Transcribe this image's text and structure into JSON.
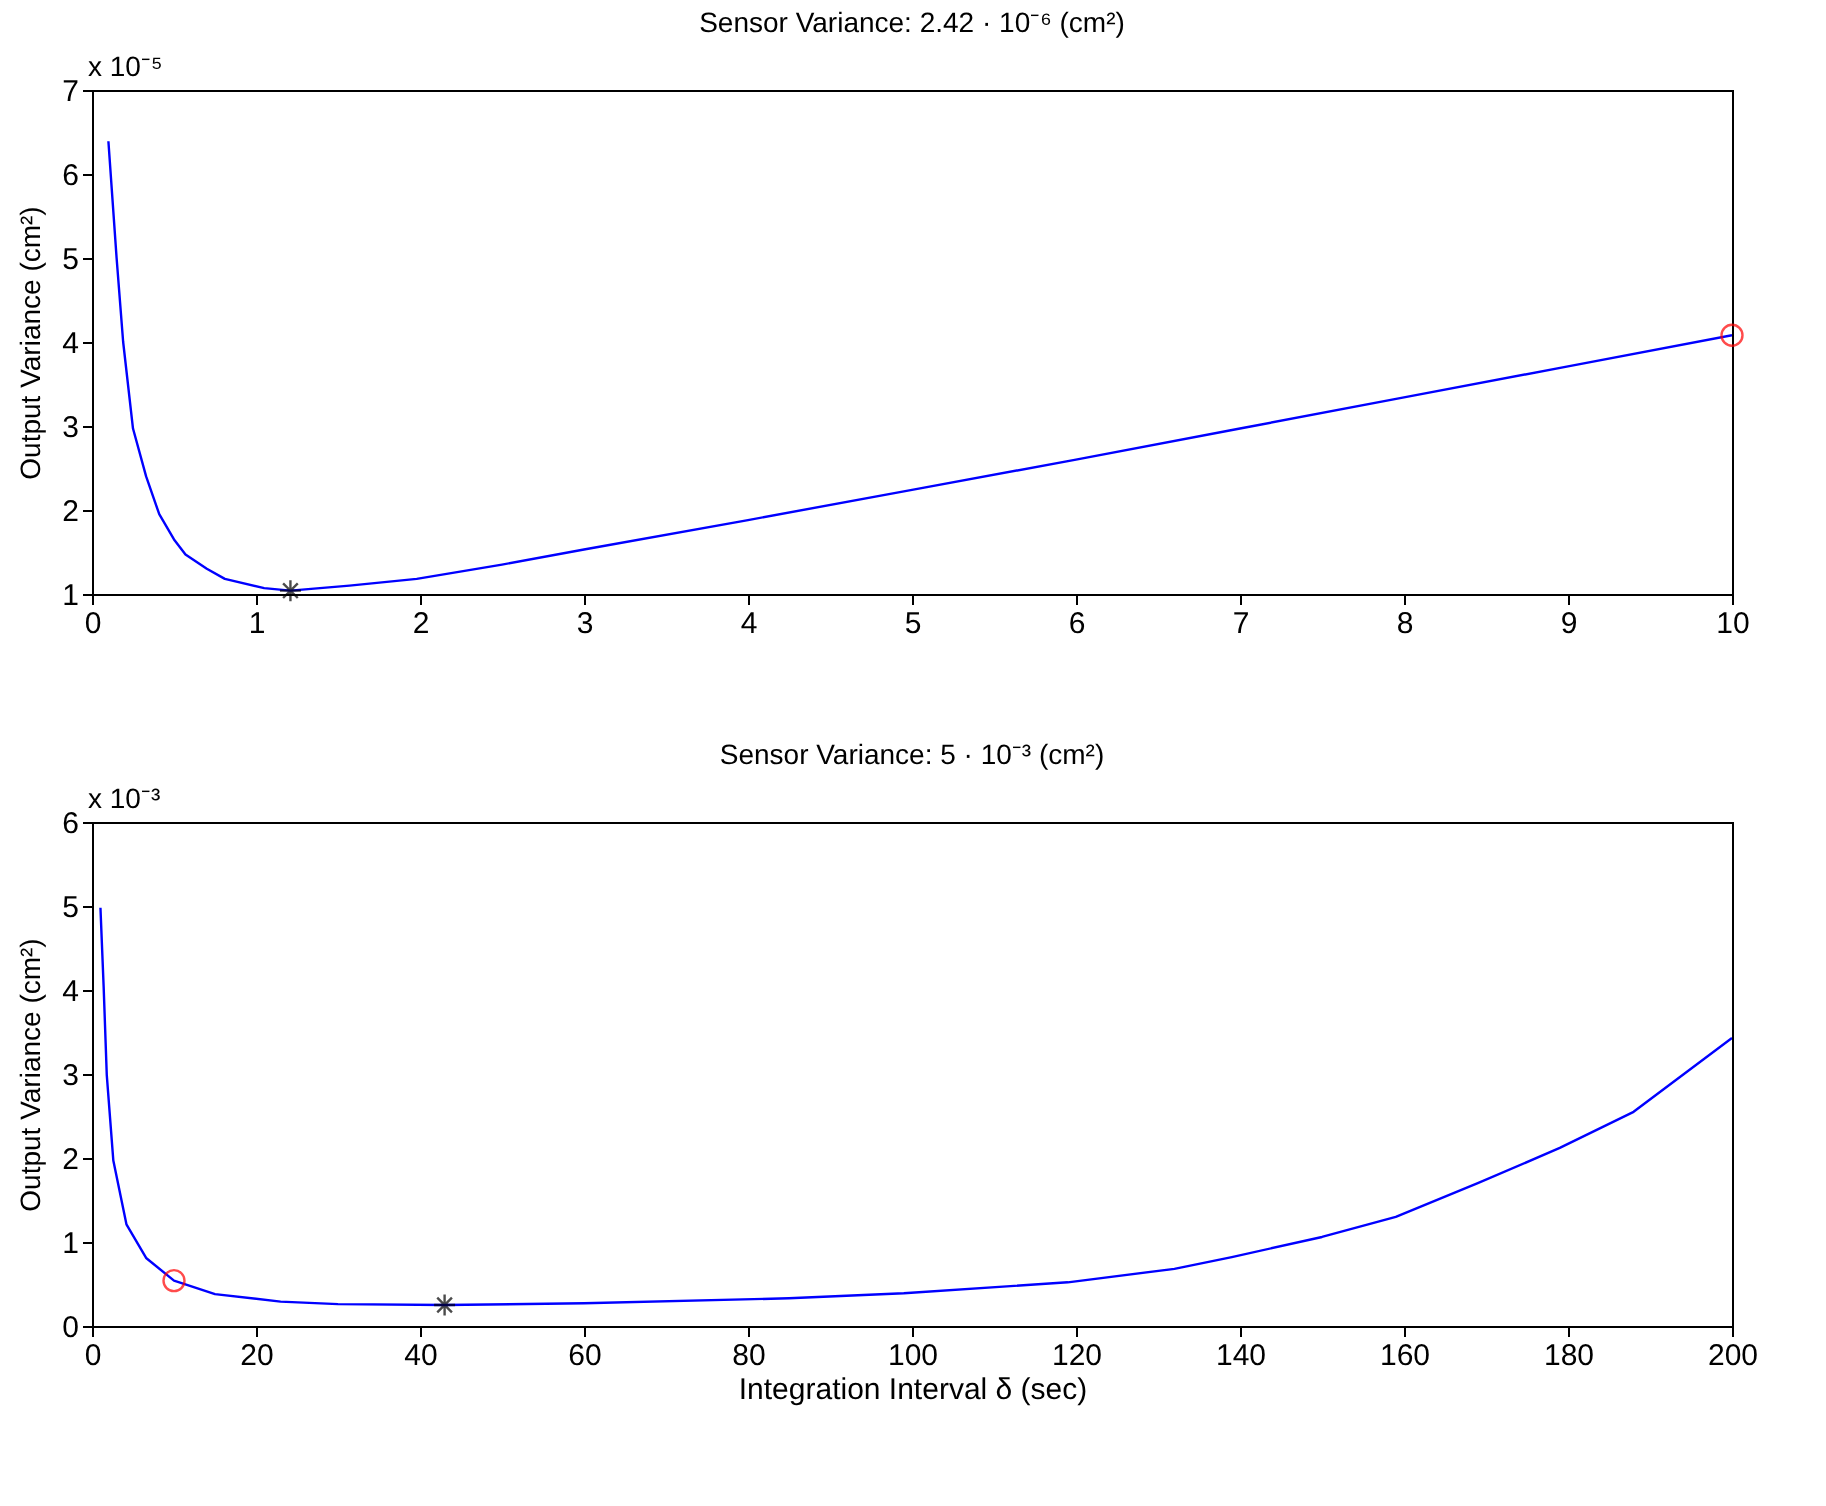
{
  "chart_data": [
    {
      "type": "line",
      "title": "Sensor Variance: 2.42 · 10⁻⁶ (cm²)",
      "ylabel": "Output Variance (cm²)",
      "annotations": [
        "x 10⁻⁵"
      ],
      "xlim": [
        0,
        10
      ],
      "xticks": [
        0,
        1,
        2,
        3,
        4,
        5,
        6,
        7,
        8,
        9,
        10
      ],
      "ylim": [
        1,
        7
      ],
      "yticks": [
        1,
        2,
        3,
        4,
        5,
        6,
        7
      ],
      "grid": false,
      "series": [
        {
          "type": "line",
          "color": "#0000ff",
          "line_style": "solid",
          "x": [
            0.1,
            0.15,
            0.19,
            0.25,
            0.33,
            0.41,
            0.5,
            0.57,
            0.7,
            0.81,
            1.05,
            1.21,
            1.57,
            1.98,
            2.5,
            3,
            4,
            5,
            6,
            7,
            8,
            9,
            10
          ],
          "values": [
            6.39,
            5.0,
            4.0,
            2.97,
            2.4,
            1.95,
            1.65,
            1.47,
            1.3,
            1.18,
            1.07,
            1.04,
            1.1,
            1.18,
            1.35,
            1.53,
            1.88,
            2.24,
            2.6,
            2.97,
            3.34,
            3.71,
            4.08
          ]
        },
        {
          "type": "scatter",
          "color": "#000000",
          "marker": "cross",
          "x": [
            1.21
          ],
          "values": [
            1.04
          ]
        },
        {
          "type": "scatter",
          "color": "#ff0000",
          "marker": "circle",
          "x": [
            10
          ],
          "values": [
            4.08
          ]
        }
      ]
    },
    {
      "type": "line",
      "title": "Sensor Variance: 5 · 10⁻³ (cm²)",
      "xlabel": "Integration Interval δ (sec)",
      "ylabel": "Output Variance (cm²)",
      "annotations": [
        "x 10⁻³"
      ],
      "xlim": [
        0,
        200
      ],
      "xticks": [
        0,
        20,
        40,
        60,
        80,
        100,
        120,
        140,
        160,
        180,
        200
      ],
      "ylim": [
        0,
        6
      ],
      "yticks": [
        0,
        1,
        2,
        3,
        4,
        5,
        6
      ],
      "grid": false,
      "series": [
        {
          "type": "line",
          "color": "#0000ff",
          "line_style": "solid",
          "x": [
            1.03,
            1.42,
            1.8,
            2.6,
            4.2,
            6.6,
            10,
            15,
            23,
            30,
            43,
            60,
            85,
            99,
            119,
            132,
            139,
            150,
            159,
            169,
            179,
            188,
            200
          ],
          "values": [
            4.98,
            4.04,
            2.99,
            1.97,
            1.21,
            0.81,
            0.54,
            0.38,
            0.29,
            0.26,
            0.25,
            0.27,
            0.33,
            0.39,
            0.52,
            0.68,
            0.82,
            1.06,
            1.3,
            1.7,
            2.12,
            2.55,
            3.43
          ]
        },
        {
          "type": "scatter",
          "color": "#000000",
          "marker": "cross",
          "x": [
            43
          ],
          "values": [
            0.25
          ]
        },
        {
          "type": "scatter",
          "color": "#ff0000",
          "marker": "circle",
          "x": [
            10
          ],
          "values": [
            0.54
          ]
        }
      ]
    }
  ]
}
